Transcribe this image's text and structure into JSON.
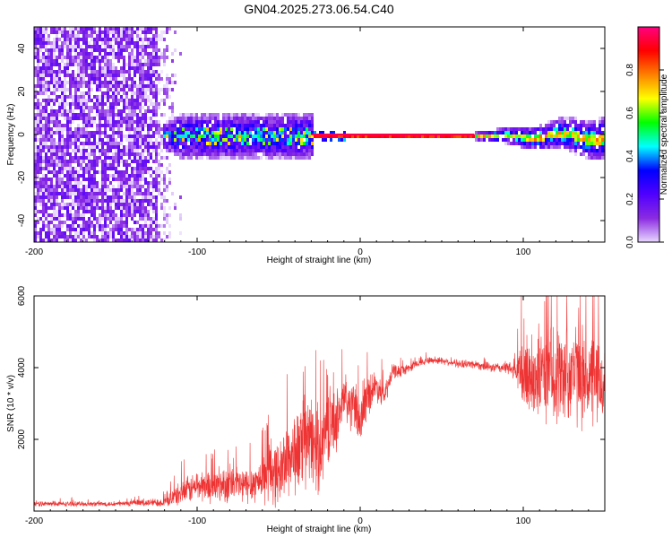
{
  "figure_title": "GN04.2025.273.06.54.C40",
  "chart_data": [
    {
      "type": "heatmap",
      "title": "GN04.2025.273.06.54.C40",
      "xlabel": "Height of straight line (km)",
      "ylabel": "Frequency (Hz)",
      "xlim": [
        -200,
        150
      ],
      "ylim": [
        -50,
        50
      ],
      "xticks": [
        -200,
        -100,
        0,
        100
      ],
      "yticks": [
        -40,
        -20,
        0,
        20,
        40
      ],
      "colorbar": {
        "label": "Normalized spectral amplitude",
        "range": [
          0,
          1
        ],
        "ticks": [
          0.0,
          0.2,
          0.4,
          0.6,
          0.8
        ],
        "colormap": [
          "#e8d8ff",
          "#8a2be2",
          "#5000ff",
          "#0000ff",
          "#00ffff",
          "#00ff00",
          "#ffff00",
          "#ff8000",
          "#ff0000",
          "#ff0080"
        ]
      },
      "regions": [
        {
          "name": "noise",
          "x_range": [
            -200,
            -125
          ],
          "y_range": [
            -50,
            50
          ],
          "amplitude": 0.15
        },
        {
          "name": "noise-fade",
          "x_range": [
            -125,
            -110
          ],
          "y_range": [
            -50,
            50
          ],
          "amplitude": 0.1
        },
        {
          "name": "broad-band",
          "x_range": [
            -122,
            -30
          ],
          "y_range": [
            -10,
            8
          ],
          "amplitude": 0.3
        },
        {
          "name": "narrow-tone",
          "x_range": [
            -30,
            70
          ],
          "y_range": [
            -1,
            1
          ],
          "amplitude": 0.95
        },
        {
          "name": "rebroaden",
          "x_range": [
            70,
            150
          ],
          "y_range": [
            -8,
            8
          ],
          "amplitude": 0.35
        }
      ]
    },
    {
      "type": "line",
      "xlabel": "Height of straight line (km)",
      "ylabel": "SNR (10 * v/v)",
      "xlim": [
        -200,
        150
      ],
      "ylim": [
        0,
        6000
      ],
      "xticks": [
        -200,
        -100,
        0,
        100
      ],
      "yticks": [
        2000,
        4000,
        6000
      ],
      "series": [
        {
          "name": "SNR",
          "color": "#ee3333",
          "x": [
            -200,
            -150,
            -120,
            -110,
            -100,
            -90,
            -80,
            -70,
            -60,
            -55,
            -50,
            -45,
            -40,
            -35,
            -30,
            -25,
            -20,
            -15,
            -10,
            -5,
            0,
            5,
            10,
            15,
            20,
            25,
            30,
            40,
            50,
            60,
            70,
            80,
            90,
            95,
            100,
            110,
            120,
            130,
            140,
            150
          ],
          "y": [
            200,
            200,
            250,
            500,
            700,
            700,
            750,
            700,
            900,
            1200,
            1000,
            1500,
            1600,
            1800,
            1900,
            1700,
            2400,
            2500,
            3100,
            2900,
            2500,
            3300,
            3500,
            3200,
            3900,
            3900,
            4000,
            4200,
            4200,
            4100,
            4100,
            4000,
            4000,
            3900,
            3800,
            3800,
            3800,
            3900,
            3700,
            3500
          ],
          "spread": [
            80,
            80,
            150,
            400,
            500,
            550,
            600,
            600,
            700,
            1200,
            1000,
            1300,
            1400,
            1400,
            1500,
            1400,
            1300,
            1000,
            900,
            800,
            700,
            700,
            500,
            400,
            250,
            200,
            150,
            120,
            120,
            120,
            150,
            150,
            200,
            300,
            1400,
            1500,
            1600,
            1700,
            1600,
            1400
          ]
        }
      ]
    }
  ]
}
